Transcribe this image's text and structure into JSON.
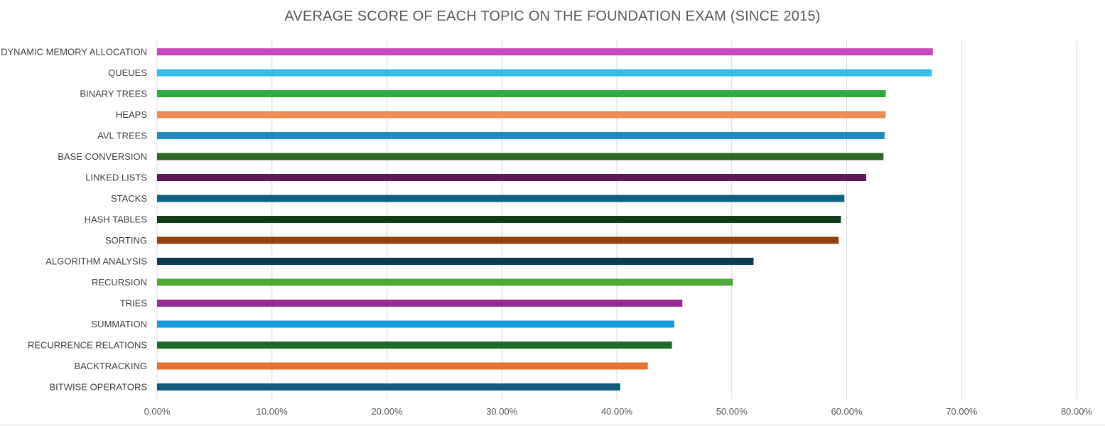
{
  "chart_data": {
    "type": "bar",
    "orientation": "horizontal",
    "title": "AVERAGE SCORE OF EACH TOPIC ON THE FOUNDATION EXAM (SINCE 2015)",
    "xlabel": "",
    "ylabel": "",
    "xlim": [
      0,
      0.8
    ],
    "grid": true,
    "legend": "none",
    "x_ticks": [
      "0.00%",
      "10.00%",
      "20.00%",
      "30.00%",
      "40.00%",
      "50.00%",
      "60.00%",
      "70.00%",
      "80.00%"
    ],
    "categories": [
      "DYNAMIC MEMORY ALLOCATION",
      "QUEUES",
      "BINARY TREES",
      "HEAPS",
      "AVL TREES",
      "BASE CONVERSION",
      "LINKED LISTS",
      "STACKS",
      "HASH TABLES",
      "SORTING",
      "ALGORITHM ANALYSIS",
      "RECURSION",
      "TRIES",
      "SUMMATION",
      "RECURRENCE RELATIONS",
      "BACKTRACKING",
      "BITWISE OPERATORS"
    ],
    "values": [
      0.675,
      0.674,
      0.634,
      0.634,
      0.633,
      0.632,
      0.617,
      0.598,
      0.595,
      0.593,
      0.519,
      0.501,
      0.457,
      0.45,
      0.448,
      0.427,
      0.403
    ],
    "colors": [
      "#c848c0",
      "#33bdef",
      "#2eaa3e",
      "#ec8c5a",
      "#1e8cc0",
      "#2e6428",
      "#5a1a56",
      "#0e6080",
      "#133c1a",
      "#964012",
      "#0e3a50",
      "#4fa83a",
      "#932e90",
      "#1898d6",
      "#1f6a2a",
      "#e47232",
      "#155a7a"
    ]
  }
}
